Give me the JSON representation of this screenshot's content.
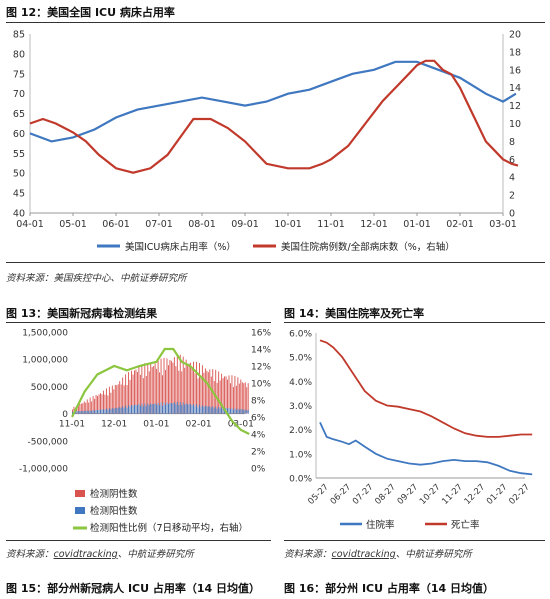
{
  "fig12": {
    "caption": "图 12：美国全国 ICU 病床占用率",
    "source": "资料来源：美国疾控中心、中航证券研究所",
    "chart_data": {
      "type": "line",
      "title": "",
      "categories": [
        "04-01",
        "05-01",
        "06-01",
        "07-01",
        "08-01",
        "09-01",
        "10-01",
        "11-01",
        "12-01",
        "01-01",
        "02-01",
        "03-01"
      ],
      "yticks_left": [
        "40",
        "45",
        "50",
        "55",
        "60",
        "65",
        "70",
        "75",
        "80",
        "85"
      ],
      "yticks_right": [
        "0",
        "2",
        "4",
        "6",
        "8",
        "10",
        "12",
        "14",
        "16",
        "18",
        "20"
      ],
      "ylim_left": [
        40,
        85
      ],
      "ylim_right": [
        0,
        20
      ],
      "legend": "bottom",
      "series": [
        {
          "name": "美国ICU病床占用率（%）",
          "axis": "left",
          "color": "#3f78c0",
          "x": [
            0,
            0.5,
            1,
            1.5,
            2,
            2.5,
            3,
            3.5,
            4,
            4.5,
            5,
            5.5,
            6,
            6.5,
            7,
            7.5,
            8,
            8.5,
            9,
            9.5,
            10,
            10.3,
            10.6,
            11,
            11.3
          ],
          "values": [
            60,
            58,
            59,
            61,
            64,
            66,
            67,
            68,
            69,
            68,
            67,
            68,
            70,
            71,
            73,
            75,
            76,
            78,
            78,
            76,
            74,
            72,
            70,
            68,
            70
          ]
        },
        {
          "name": "美国住院病例数/全部病床数（%，右轴）",
          "axis": "right",
          "color": "#c0392b",
          "x": [
            0,
            0.3,
            0.6,
            1,
            1.3,
            1.6,
            2,
            2.4,
            2.8,
            3.2,
            3.5,
            3.8,
            4.2,
            4.6,
            5,
            5.5,
            6,
            6.5,
            6.8,
            7,
            7.4,
            7.8,
            8.2,
            8.6,
            8.8,
            9,
            9.2,
            9.4,
            9.6,
            9.8,
            10,
            10.2,
            10.4,
            10.6,
            10.8,
            11,
            11.2,
            11.35
          ],
          "values": [
            10,
            10.5,
            10,
            9,
            8,
            6.5,
            5,
            4.5,
            5,
            6.5,
            8.5,
            10.5,
            10.5,
            9.5,
            8,
            5.5,
            5,
            5,
            5.5,
            6,
            7.5,
            10,
            12.5,
            14.5,
            15.5,
            16.5,
            17,
            17,
            16,
            15.5,
            14,
            12,
            10,
            8,
            7,
            6,
            5.5,
            5.3
          ]
        }
      ]
    }
  },
  "fig13": {
    "caption": "图 13：美国新冠病毒检测结果",
    "chart_data": {
      "type": "bar",
      "title": "",
      "categories": [
        "11-01",
        "12-01",
        "01-01",
        "02-01",
        "03-01"
      ],
      "yticks_left": [
        "1,500,000",
        "1,000,000",
        "500,000",
        "0",
        "-500,000",
        "-1,000,000"
      ],
      "yticks_right": [
        "16%",
        "14%",
        "12%",
        "10%",
        "8%",
        "6%",
        "4%",
        "2%",
        "0%"
      ],
      "ylim_left": [
        -1000000,
        1500000
      ],
      "ylim_right": [
        0,
        16
      ],
      "series": [
        {
          "name": "检测阴性数",
          "color": "#d9534f",
          "x": [
            0,
            0.5,
            1,
            1.5,
            2,
            2.5,
            3,
            3.5,
            4,
            4.2
          ],
          "values": [
            100000,
            300000,
            500000,
            800000,
            900000,
            1000000,
            850000,
            700000,
            600000,
            500000
          ]
        },
        {
          "name": "检测阳性数",
          "color": "#3f78c0",
          "x": [
            0,
            0.5,
            1,
            1.5,
            2,
            2.5,
            3,
            3.5,
            4,
            4.2
          ],
          "values": [
            40000,
            60000,
            100000,
            160000,
            180000,
            200000,
            150000,
            110000,
            80000,
            60000
          ]
        },
        {
          "name": "检测阳性比例（7日移动平均，右轴）",
          "axis": "right",
          "color": "#8cc63f",
          "x": [
            0,
            0.3,
            0.6,
            1,
            1.3,
            1.6,
            2,
            2.2,
            2.4,
            2.6,
            2.8,
            3,
            3.2,
            3.4,
            3.6,
            3.8,
            4,
            4.2
          ],
          "values": [
            6,
            9,
            11,
            12,
            11.5,
            12,
            12.5,
            14,
            14,
            12.5,
            12,
            11,
            10,
            8.5,
            7,
            5.5,
            4.5,
            4
          ]
        }
      ]
    }
  },
  "fig14": {
    "caption": "图 14：美国住院率及死亡率",
    "source_prefix": "资料来源：",
    "source_link": "covidtracking",
    "source_suffix": "、中航证券研究所",
    "chart_data": {
      "type": "line",
      "title": "",
      "categories": [
        "05-27",
        "06-27",
        "07-27",
        "08-27",
        "09-27",
        "10-27",
        "11-27",
        "12-27",
        "01-27",
        "02-27"
      ],
      "yticks": [
        "0.0%",
        "0.5%",
        "1.0%",
        "1.5%",
        "2.0%",
        "2.5%",
        "3.0%",
        "3.5%",
        "4.0%",
        "4.5%",
        "5.0%",
        "5.5%",
        "6.0%"
      ],
      "ylim": [
        0,
        6
      ],
      "legend": "bottom",
      "series": [
        {
          "name": "住院率",
          "color": "#3f78c0",
          "x": [
            0,
            0.3,
            0.6,
            1,
            1.3,
            1.6,
            2,
            2.5,
            3,
            3.5,
            4,
            4.5,
            5,
            5.5,
            6,
            6.5,
            7,
            7.5,
            8,
            8.5,
            9,
            9.5
          ],
          "values": [
            2.3,
            1.7,
            1.6,
            1.5,
            1.4,
            1.55,
            1.3,
            1.0,
            0.8,
            0.7,
            0.6,
            0.55,
            0.6,
            0.7,
            0.75,
            0.7,
            0.7,
            0.65,
            0.5,
            0.3,
            0.2,
            0.15
          ]
        },
        {
          "name": "死亡率",
          "color": "#c0392b",
          "x": [
            0,
            0.3,
            0.6,
            1,
            1.5,
            2,
            2.5,
            3,
            3.5,
            4,
            4.5,
            5,
            5.5,
            6,
            6.5,
            7,
            7.5,
            8,
            8.5,
            9,
            9.5
          ],
          "values": [
            5.7,
            5.6,
            5.4,
            5.0,
            4.3,
            3.6,
            3.2,
            3.0,
            2.95,
            2.85,
            2.75,
            2.55,
            2.3,
            2.05,
            1.85,
            1.75,
            1.7,
            1.7,
            1.75,
            1.8,
            1.8
          ]
        }
      ]
    }
  },
  "fig13_source_prefix": "资料来源：",
  "fig13_source_link": "covidtracking",
  "fig13_source_suffix": "、中航证券研究所",
  "fig15": {
    "caption": "图 15：部分州新冠病人 ICU 占用率（14 日均值）"
  },
  "fig16": {
    "caption": "图 16：部分州 ICU 占用率（14 日均值）"
  }
}
